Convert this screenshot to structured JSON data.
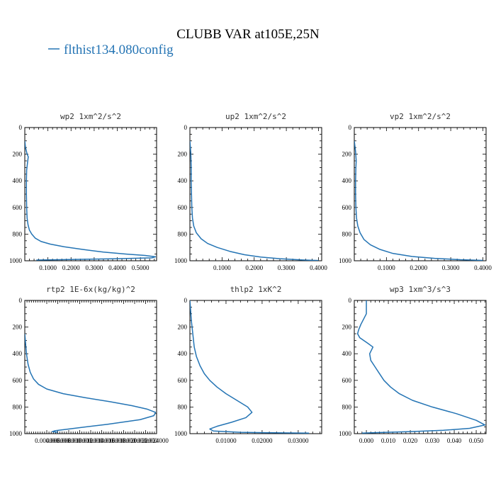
{
  "figure": {
    "title": "CLUBB VAR at105E,25N",
    "legend_label": "flthist134.080config",
    "line_color": "#2474b4"
  },
  "chart_data": [
    {
      "type": "line",
      "title": "wp2   1xm^2/s^2",
      "xlim": [
        0,
        0.57
      ],
      "ylim": [
        1000,
        0
      ],
      "x_ticks": [
        0.1,
        0.2,
        0.3,
        0.4,
        0.5
      ],
      "x_tick_labels": [
        "0.1000",
        "0.2000",
        "0.3000",
        "0.4000",
        "0.5000"
      ],
      "y_ticks": [
        0,
        200,
        400,
        600,
        800,
        1000
      ],
      "y_tick_labels": [
        "0",
        "200",
        "400",
        "600",
        "800",
        "1000"
      ],
      "series": [
        {
          "x": [
            0.0,
            0.003,
            0.01,
            0.015,
            0.012,
            0.008,
            0.007,
            0.007,
            0.008,
            0.01,
            0.014,
            0.02,
            0.03,
            0.045,
            0.07,
            0.11,
            0.17,
            0.25,
            0.34,
            0.44,
            0.52,
            0.565,
            0.55,
            0.4,
            0.15,
            0.05
          ],
          "y": [
            100,
            150,
            200,
            220,
            260,
            320,
            400,
            500,
            600,
            680,
            730,
            770,
            800,
            830,
            855,
            875,
            895,
            915,
            935,
            950,
            960,
            970,
            978,
            985,
            992,
            995
          ]
        }
      ]
    },
    {
      "type": "line",
      "title": "up2   1xm^2/s^2",
      "xlim": [
        0,
        0.41
      ],
      "ylim": [
        1000,
        0
      ],
      "x_ticks": [
        0.1,
        0.2,
        0.3,
        0.4
      ],
      "x_tick_labels": [
        "0.1000",
        "0.2000",
        "0.3000",
        "0.4000"
      ],
      "y_ticks": [
        0,
        200,
        400,
        600,
        800,
        1000
      ],
      "y_tick_labels": [
        "0",
        "200",
        "400",
        "600",
        "800",
        "1000"
      ],
      "series": [
        {
          "x": [
            0.0,
            0.003,
            0.004,
            0.004,
            0.005,
            0.006,
            0.008,
            0.012,
            0.02,
            0.035,
            0.055,
            0.085,
            0.125,
            0.17,
            0.22,
            0.28,
            0.35,
            0.4
          ],
          "y": [
            100,
            200,
            300,
            400,
            500,
            600,
            680,
            740,
            790,
            835,
            870,
            900,
            930,
            955,
            972,
            985,
            994,
            998
          ]
        }
      ]
    },
    {
      "type": "line",
      "title": "vp2   1xm^2/s^2",
      "xlim": [
        0,
        0.41
      ],
      "ylim": [
        1000,
        0
      ],
      "x_ticks": [
        0.1,
        0.2,
        0.3,
        0.4
      ],
      "x_tick_labels": [
        "0.1000",
        "0.2000",
        "0.3000",
        "0.4000"
      ],
      "y_ticks": [
        0,
        200,
        400,
        600,
        800,
        1000
      ],
      "y_tick_labels": [
        "0",
        "200",
        "400",
        "600",
        "800",
        "1000"
      ],
      "series": [
        {
          "x": [
            0.0,
            0.004,
            0.006,
            0.005,
            0.004,
            0.004,
            0.005,
            0.007,
            0.011,
            0.018,
            0.03,
            0.05,
            0.08,
            0.12,
            0.18,
            0.25,
            0.33,
            0.4
          ],
          "y": [
            100,
            180,
            250,
            300,
            400,
            500,
            600,
            680,
            740,
            790,
            840,
            880,
            915,
            945,
            968,
            982,
            992,
            997
          ]
        }
      ]
    },
    {
      "type": "line",
      "title": "rtp2   1E-6x(kg/kg)^2",
      "xlim": [
        0,
        2.4e-05
      ],
      "ylim": [
        1000,
        0
      ],
      "x_ticks": [
        4e-06,
        6e-06,
        8e-06,
        1e-05,
        1.2e-05,
        1.4e-05,
        1.6e-05,
        1.8e-05,
        2e-05,
        2.2e-05,
        2.4e-05
      ],
      "x_tick_labels": [
        "0.004000",
        "0.006000",
        "0.008000",
        "0.010000",
        "0.012000",
        "0.014000",
        "0.016000",
        "0.018000",
        "0.020000",
        "0.022000",
        "0.024000"
      ],
      "y_ticks": [
        0,
        200,
        400,
        600,
        800,
        1000
      ],
      "y_tick_labels": [
        "0",
        "200",
        "400",
        "600",
        "800",
        "1000"
      ],
      "series": [
        {
          "x": [
            0.0,
            1e-07,
            3e-07,
            6e-07,
            1e-06,
            1.6e-06,
            2.5e-06,
            4e-06,
            7e-06,
            1.1e-05,
            1.55e-05,
            1.95e-05,
            2.22e-05,
            2.38e-05,
            2.35e-05,
            2.1e-05,
            1.5e-05,
            9e-06,
            5.5e-06,
            5e-06,
            6e-06
          ],
          "y": [
            250,
            300,
            400,
            480,
            540,
            590,
            630,
            665,
            700,
            730,
            760,
            790,
            815,
            840,
            865,
            895,
            930,
            960,
            978,
            985,
            990
          ]
        }
      ]
    },
    {
      "type": "line",
      "title": "thlp2   1xK^2",
      "xlim": [
        0,
        0.0365
      ],
      "ylim": [
        1000,
        0
      ],
      "x_ticks": [
        0.01,
        0.02,
        0.03
      ],
      "x_tick_labels": [
        "0.01000",
        "0.02000",
        "0.03000"
      ],
      "y_ticks": [
        0,
        200,
        400,
        600,
        800,
        1000
      ],
      "y_tick_labels": [
        "0",
        "200",
        "400",
        "600",
        "800",
        "1000"
      ],
      "series": [
        {
          "x": [
            0.0,
            0.0004,
            0.0008,
            0.0012,
            0.0018,
            0.0028,
            0.004,
            0.0055,
            0.0075,
            0.01,
            0.013,
            0.016,
            0.0172,
            0.0155,
            0.0115,
            0.0075,
            0.0055,
            0.0065,
            0.014,
            0.025,
            0.033
          ],
          "y": [
            0,
            150,
            250,
            350,
            420,
            490,
            550,
            600,
            650,
            700,
            750,
            800,
            840,
            880,
            915,
            945,
            965,
            980,
            990,
            994,
            996
          ]
        }
      ]
    },
    {
      "type": "line",
      "title": "wp3   1xm^3/s^3",
      "xlim": [
        -0.0055,
        0.0545
      ],
      "ylim": [
        1000,
        0
      ],
      "x_ticks": [
        0.0,
        0.01,
        0.02,
        0.03,
        0.04,
        0.05
      ],
      "x_tick_labels": [
        "0.000",
        "0.010",
        "0.020",
        "0.030",
        "0.040",
        "0.050"
      ],
      "y_ticks": [
        0,
        200,
        400,
        600,
        800,
        1000
      ],
      "y_tick_labels": [
        "0",
        "200",
        "400",
        "600",
        "800",
        "1000"
      ],
      "series": [
        {
          "x": [
            0.0,
            0.0,
            -0.0025,
            -0.0035,
            -0.004,
            -0.003,
            0.0005,
            0.003,
            0.0015,
            0.002,
            0.004,
            0.006,
            0.008,
            0.011,
            0.015,
            0.021,
            0.03,
            0.041,
            0.05,
            0.054,
            0.047,
            0.035,
            0.02,
            0.005,
            -0.002
          ],
          "y": [
            0,
            100,
            180,
            220,
            250,
            280,
            320,
            350,
            400,
            450,
            500,
            550,
            600,
            650,
            700,
            750,
            800,
            850,
            900,
            935,
            960,
            975,
            985,
            992,
            996
          ]
        }
      ]
    }
  ]
}
